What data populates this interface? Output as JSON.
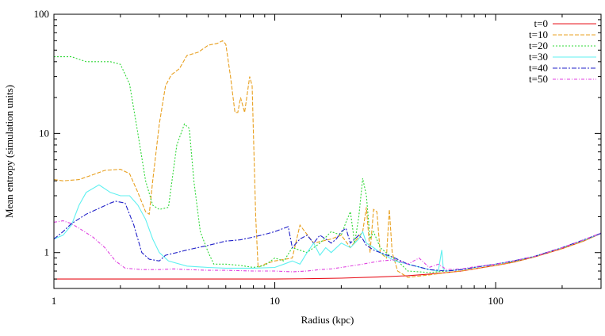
{
  "chart_data": {
    "type": "line",
    "title": "",
    "xlabel": "Radius (kpc)",
    "ylabel": "Mean entropy (simulation units)",
    "xscale": "log",
    "yscale": "log",
    "xlim": [
      1,
      300
    ],
    "ylim": [
      0.5,
      100
    ],
    "xticks": [
      {
        "value": 1,
        "label": "1"
      },
      {
        "value": 10,
        "label": "10"
      },
      {
        "value": 100,
        "label": "100"
      }
    ],
    "yticks": [
      {
        "value": 1,
        "label": "1"
      },
      {
        "value": 10,
        "label": "10"
      },
      {
        "value": 100,
        "label": "100"
      }
    ],
    "grid": false,
    "legend_position": "top-right",
    "series": [
      {
        "name": "t=0",
        "color": "#e8101a",
        "dash": "",
        "points": [
          [
            1,
            0.6
          ],
          [
            3,
            0.6
          ],
          [
            6,
            0.6
          ],
          [
            10,
            0.6
          ],
          [
            15,
            0.605
          ],
          [
            20,
            0.61
          ],
          [
            30,
            0.625
          ],
          [
            40,
            0.64
          ],
          [
            50,
            0.66
          ],
          [
            60,
            0.68
          ],
          [
            70,
            0.7
          ],
          [
            80,
            0.73
          ],
          [
            100,
            0.78
          ],
          [
            120,
            0.83
          ],
          [
            150,
            0.92
          ],
          [
            200,
            1.08
          ],
          [
            250,
            1.25
          ],
          [
            300,
            1.45
          ]
        ]
      },
      {
        "name": "t=10",
        "color": "#e8a020",
        "dash": "5,2",
        "points": [
          [
            1,
            4.1
          ],
          [
            1.1,
            4.0
          ],
          [
            1.3,
            4.1
          ],
          [
            1.5,
            4.5
          ],
          [
            1.7,
            4.9
          ],
          [
            2.0,
            5.0
          ],
          [
            2.2,
            4.6
          ],
          [
            2.4,
            3.2
          ],
          [
            2.6,
            2.2
          ],
          [
            2.7,
            2.1
          ],
          [
            2.8,
            4.0
          ],
          [
            3.0,
            12
          ],
          [
            3.2,
            25
          ],
          [
            3.4,
            31
          ],
          [
            3.7,
            35
          ],
          [
            4.0,
            45
          ],
          [
            4.5,
            48
          ],
          [
            5.0,
            55
          ],
          [
            5.5,
            57
          ],
          [
            5.8,
            60
          ],
          [
            6.0,
            56
          ],
          [
            6.3,
            30
          ],
          [
            6.6,
            15
          ],
          [
            6.8,
            15
          ],
          [
            7.0,
            20
          ],
          [
            7.3,
            15
          ],
          [
            7.7,
            30
          ],
          [
            7.9,
            25
          ],
          [
            8.0,
            10
          ],
          [
            8.2,
            2.0
          ],
          [
            8.4,
            0.75
          ],
          [
            9,
            0.8
          ],
          [
            10,
            0.85
          ],
          [
            12,
            0.9
          ],
          [
            13,
            1.7
          ],
          [
            15,
            1.2
          ],
          [
            18,
            1.3
          ],
          [
            20,
            1.4
          ],
          [
            22,
            1.1
          ],
          [
            25,
            1.5
          ],
          [
            26,
            2.4
          ],
          [
            27,
            1.0
          ],
          [
            28,
            2.3
          ],
          [
            29,
            2.2
          ],
          [
            30,
            1.0
          ],
          [
            32,
            0.9
          ],
          [
            33,
            2.3
          ],
          [
            34,
            1.0
          ],
          [
            36,
            0.7
          ],
          [
            40,
            0.62
          ],
          [
            50,
            0.65
          ],
          [
            60,
            0.68
          ],
          [
            70,
            0.7
          ],
          [
            80,
            0.73
          ],
          [
            100,
            0.78
          ],
          [
            120,
            0.83
          ],
          [
            150,
            0.92
          ],
          [
            200,
            1.08
          ],
          [
            250,
            1.25
          ],
          [
            300,
            1.45
          ]
        ]
      },
      {
        "name": "t=20",
        "color": "#30d838",
        "dash": "2,2",
        "points": [
          [
            1,
            44
          ],
          [
            1.2,
            44
          ],
          [
            1.4,
            40
          ],
          [
            1.8,
            40
          ],
          [
            2.0,
            38
          ],
          [
            2.2,
            26
          ],
          [
            2.4,
            10
          ],
          [
            2.6,
            4.0
          ],
          [
            2.8,
            2.5
          ],
          [
            3.0,
            2.3
          ],
          [
            3.3,
            2.4
          ],
          [
            3.6,
            8.0
          ],
          [
            3.9,
            12
          ],
          [
            4.1,
            11
          ],
          [
            4.3,
            4.0
          ],
          [
            4.6,
            1.5
          ],
          [
            5.0,
            1.0
          ],
          [
            5.3,
            0.8
          ],
          [
            6,
            0.8
          ],
          [
            7,
            0.78
          ],
          [
            8,
            0.75
          ],
          [
            9,
            0.78
          ],
          [
            10,
            0.9
          ],
          [
            11,
            0.85
          ],
          [
            12,
            1.1
          ],
          [
            14,
            1.0
          ],
          [
            16,
            1.2
          ],
          [
            18,
            1.5
          ],
          [
            20,
            1.4
          ],
          [
            21,
            1.8
          ],
          [
            22,
            2.2
          ],
          [
            23,
            1.2
          ],
          [
            24,
            2.0
          ],
          [
            25,
            4.2
          ],
          [
            26,
            3.0
          ],
          [
            27,
            1.3
          ],
          [
            28,
            1.5
          ],
          [
            30,
            1.1
          ],
          [
            33,
            0.95
          ],
          [
            36,
            0.85
          ],
          [
            40,
            0.7
          ],
          [
            50,
            0.68
          ],
          [
            60,
            0.7
          ],
          [
            70,
            0.72
          ],
          [
            80,
            0.75
          ],
          [
            100,
            0.8
          ],
          [
            120,
            0.84
          ],
          [
            150,
            0.93
          ],
          [
            200,
            1.1
          ],
          [
            250,
            1.27
          ],
          [
            300,
            1.45
          ]
        ]
      },
      {
        "name": "t=30",
        "color": "#5ff0f0",
        "dash": "",
        "points": [
          [
            1,
            1.3
          ],
          [
            1.1,
            1.4
          ],
          [
            1.2,
            1.7
          ],
          [
            1.3,
            2.5
          ],
          [
            1.4,
            3.2
          ],
          [
            1.6,
            3.7
          ],
          [
            1.8,
            3.2
          ],
          [
            2.0,
            3.0
          ],
          [
            2.2,
            3.0
          ],
          [
            2.4,
            2.5
          ],
          [
            2.6,
            1.9
          ],
          [
            2.8,
            1.3
          ],
          [
            3.0,
            1.0
          ],
          [
            3.3,
            0.85
          ],
          [
            4,
            0.77
          ],
          [
            5,
            0.75
          ],
          [
            6,
            0.74
          ],
          [
            8,
            0.74
          ],
          [
            10,
            0.75
          ],
          [
            11,
            0.8
          ],
          [
            12,
            0.85
          ],
          [
            13,
            0.8
          ],
          [
            14,
            1.0
          ],
          [
            15,
            1.2
          ],
          [
            16,
            0.95
          ],
          [
            17,
            1.1
          ],
          [
            18,
            1.0
          ],
          [
            20,
            1.2
          ],
          [
            22,
            1.1
          ],
          [
            24,
            1.3
          ],
          [
            25,
            1.5
          ],
          [
            26,
            1.2
          ],
          [
            28,
            1.1
          ],
          [
            30,
            1.0
          ],
          [
            35,
            0.85
          ],
          [
            40,
            0.8
          ],
          [
            50,
            0.72
          ],
          [
            55,
            0.7
          ],
          [
            57,
            1.05
          ],
          [
            58,
            0.72
          ],
          [
            60,
            0.7
          ],
          [
            70,
            0.72
          ],
          [
            80,
            0.75
          ],
          [
            100,
            0.8
          ],
          [
            120,
            0.85
          ],
          [
            150,
            0.93
          ],
          [
            200,
            1.1
          ],
          [
            250,
            1.27
          ],
          [
            300,
            1.45
          ]
        ]
      },
      {
        "name": "t=40",
        "color": "#2020c8",
        "dash": "6,2,2,2",
        "points": [
          [
            1,
            1.3
          ],
          [
            1.1,
            1.5
          ],
          [
            1.2,
            1.75
          ],
          [
            1.4,
            2.1
          ],
          [
            1.6,
            2.35
          ],
          [
            1.8,
            2.6
          ],
          [
            1.9,
            2.7
          ],
          [
            2.1,
            2.6
          ],
          [
            2.3,
            1.7
          ],
          [
            2.5,
            1.0
          ],
          [
            2.7,
            0.88
          ],
          [
            3.0,
            0.85
          ],
          [
            3.2,
            0.95
          ],
          [
            3.6,
            1.0
          ],
          [
            4,
            1.05
          ],
          [
            5,
            1.15
          ],
          [
            6,
            1.25
          ],
          [
            7,
            1.28
          ],
          [
            8,
            1.35
          ],
          [
            9,
            1.42
          ],
          [
            10,
            1.5
          ],
          [
            11,
            1.6
          ],
          [
            11.5,
            1.65
          ],
          [
            12,
            1.1
          ],
          [
            13,
            1.3
          ],
          [
            14,
            1.4
          ],
          [
            15,
            1.2
          ],
          [
            16,
            1.4
          ],
          [
            17,
            1.3
          ],
          [
            18,
            1.2
          ],
          [
            19,
            1.3
          ],
          [
            20,
            1.5
          ],
          [
            21,
            1.6
          ],
          [
            22,
            1.2
          ],
          [
            24,
            1.4
          ],
          [
            25,
            1.3
          ],
          [
            26,
            1.15
          ],
          [
            28,
            1.05
          ],
          [
            30,
            1.0
          ],
          [
            35,
            0.9
          ],
          [
            40,
            0.8
          ],
          [
            50,
            0.72
          ],
          [
            60,
            0.7
          ],
          [
            70,
            0.72
          ],
          [
            80,
            0.75
          ],
          [
            100,
            0.8
          ],
          [
            120,
            0.85
          ],
          [
            150,
            0.93
          ],
          [
            200,
            1.1
          ],
          [
            250,
            1.28
          ],
          [
            300,
            1.45
          ]
        ]
      },
      {
        "name": "t=50",
        "color": "#e040e0",
        "dash": "4,2,1,2",
        "points": [
          [
            1,
            1.8
          ],
          [
            1.1,
            1.85
          ],
          [
            1.2,
            1.75
          ],
          [
            1.3,
            1.6
          ],
          [
            1.5,
            1.35
          ],
          [
            1.7,
            1.1
          ],
          [
            1.9,
            0.85
          ],
          [
            2.1,
            0.74
          ],
          [
            2.5,
            0.72
          ],
          [
            3.0,
            0.72
          ],
          [
            3.5,
            0.73
          ],
          [
            4,
            0.72
          ],
          [
            5,
            0.71
          ],
          [
            6,
            0.71
          ],
          [
            8,
            0.7
          ],
          [
            10,
            0.7
          ],
          [
            12,
            0.69
          ],
          [
            14,
            0.7
          ],
          [
            16,
            0.72
          ],
          [
            18,
            0.73
          ],
          [
            20,
            0.75
          ],
          [
            25,
            0.8
          ],
          [
            30,
            0.85
          ],
          [
            35,
            0.87
          ],
          [
            40,
            0.8
          ],
          [
            45,
            0.9
          ],
          [
            50,
            0.75
          ],
          [
            55,
            0.8
          ],
          [
            60,
            0.72
          ],
          [
            70,
            0.73
          ],
          [
            80,
            0.76
          ],
          [
            100,
            0.8
          ],
          [
            120,
            0.85
          ],
          [
            150,
            0.93
          ],
          [
            200,
            1.1
          ],
          [
            250,
            1.28
          ],
          [
            300,
            1.46
          ]
        ]
      }
    ]
  }
}
